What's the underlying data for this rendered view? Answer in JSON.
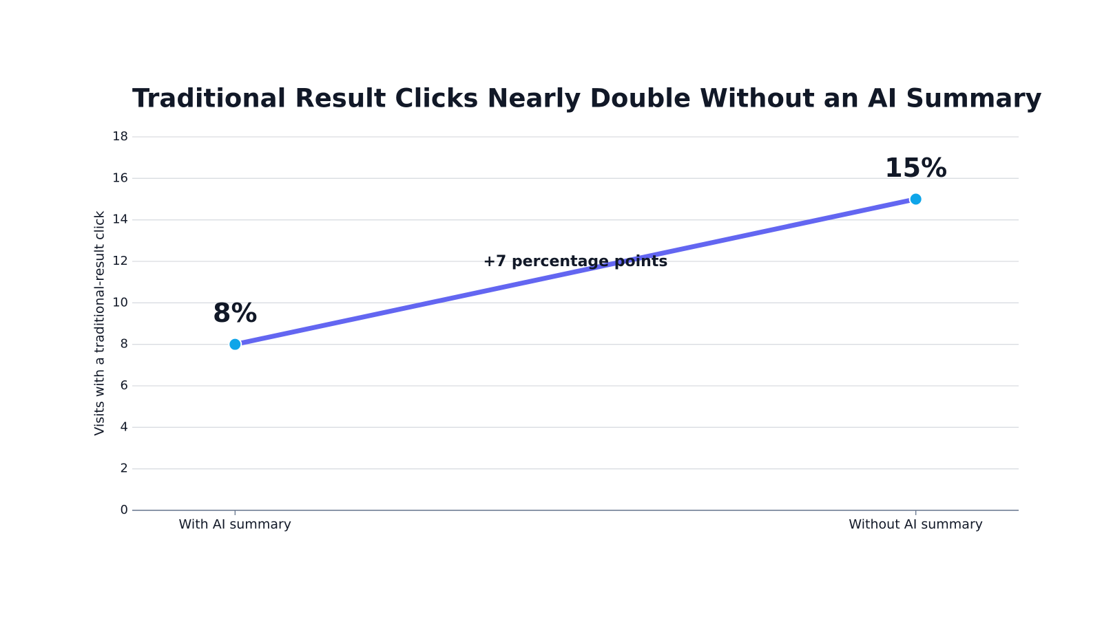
{
  "chart_data": {
    "type": "line",
    "title": "Traditional Result Clicks Nearly Double Without an AI Summary",
    "y_label": "Visits with a traditional-result click",
    "annotation": "+7 percentage points",
    "categories": [
      "With AI summary",
      "Without AI summary"
    ],
    "values": [
      8,
      15
    ],
    "value_labels": [
      "8%",
      "15%"
    ],
    "value_label_colors": [
      "#0ea5e9",
      "#6366f1"
    ],
    "color": "#6366f1",
    "marker_color": "#0ea5e9",
    "ylim": [
      0,
      18
    ],
    "yticks": [
      0,
      2,
      4,
      6,
      8,
      10,
      12,
      14,
      16,
      18
    ],
    "grid": true
  }
}
